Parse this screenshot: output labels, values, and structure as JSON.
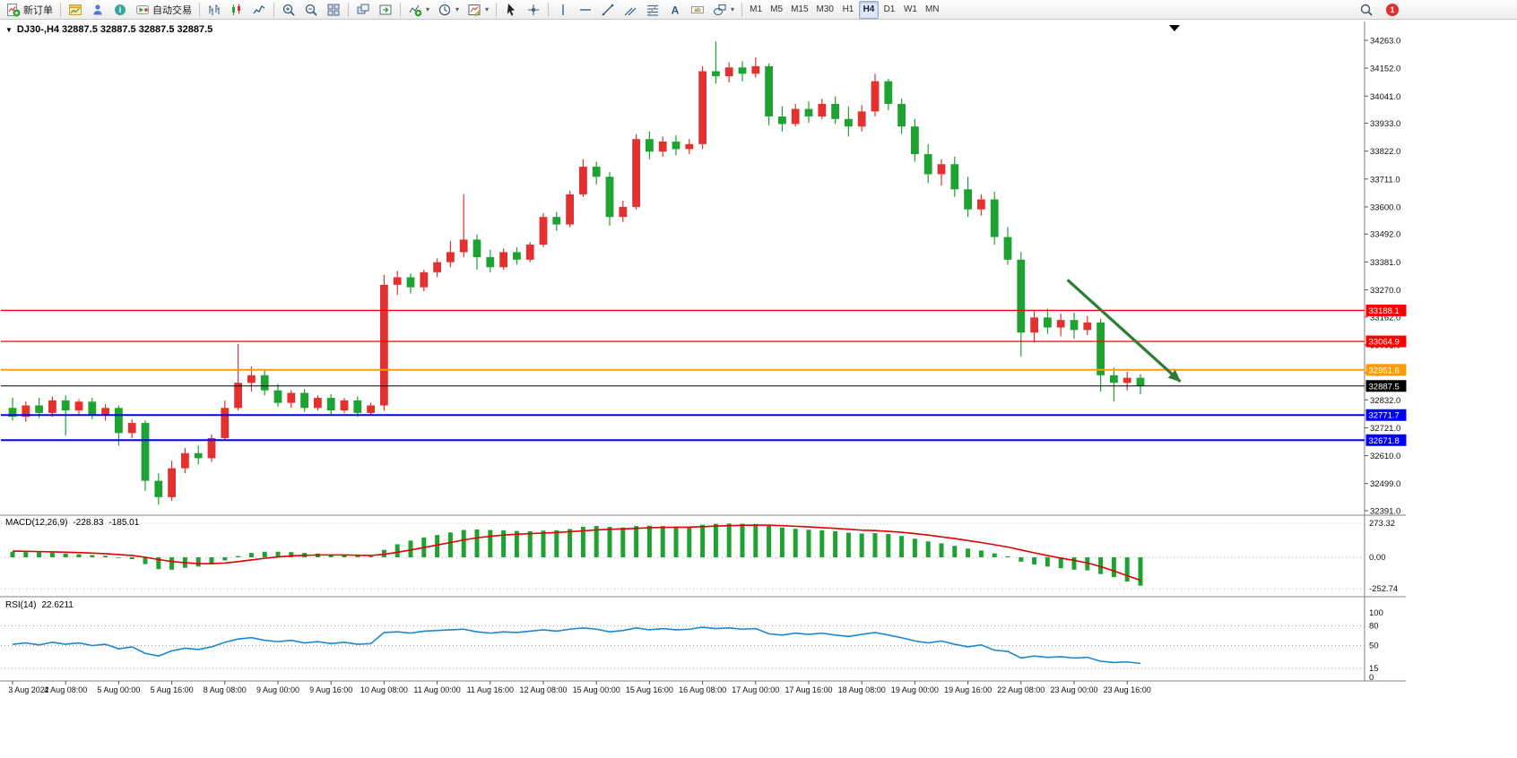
{
  "toolbar": {
    "groups": [
      {
        "items": [
          {
            "name": "new-order-button",
            "icon": "new-order",
            "label": "新订单"
          }
        ]
      },
      {
        "items": [
          {
            "name": "new-chart-button",
            "icon": "new-chart"
          },
          {
            "name": "profiles-button",
            "icon": "profiles"
          },
          {
            "name": "data-window-button",
            "icon": "data-window"
          },
          {
            "name": "auto-trading-button",
            "icon": "autotrade",
            "label": "自动交易"
          }
        ]
      },
      {
        "items": [
          {
            "name": "bar-chart-button",
            "icon": "bars"
          },
          {
            "name": "candlestick-button",
            "icon": "candles"
          },
          {
            "name": "line-chart-button",
            "icon": "line"
          }
        ]
      },
      {
        "items": [
          {
            "name": "zoom-in-button",
            "icon": "zoom-in"
          },
          {
            "name": "zoom-out-button",
            "icon": "zoom-out"
          },
          {
            "name": "tile-windows-button",
            "icon": "tile"
          }
        ]
      },
      {
        "items": [
          {
            "name": "cascade-windows-button",
            "icon": "arrange"
          },
          {
            "name": "chart-shift-button",
            "icon": "shift"
          }
        ]
      },
      {
        "items": [
          {
            "name": "indicators-button",
            "icon": "indicators",
            "dropdown": true
          },
          {
            "name": "periods-button",
            "icon": "clock",
            "dropdown": true
          },
          {
            "name": "templates-button",
            "icon": "template",
            "dropdown": true
          }
        ]
      },
      {
        "items": [
          {
            "name": "cursor-button",
            "icon": "cursor"
          },
          {
            "name": "crosshair-button",
            "icon": "crosshair"
          }
        ]
      },
      {
        "items": [
          {
            "name": "vertical-line-button",
            "icon": "vline"
          },
          {
            "name": "horizontal-line-button",
            "icon": "hline"
          },
          {
            "name": "trendline-button",
            "icon": "trendline"
          },
          {
            "name": "channel-button",
            "icon": "channel"
          },
          {
            "name": "fibonacci-button",
            "icon": "fibo"
          },
          {
            "name": "text-button",
            "icon": "text"
          },
          {
            "name": "text-label-button",
            "icon": "textlabel"
          },
          {
            "name": "shapes-button",
            "icon": "shapes",
            "dropdown": true
          }
        ]
      },
      {
        "items": [
          {
            "name": "tf-m1-button",
            "label": "M1",
            "tf": true
          },
          {
            "name": "tf-m5-button",
            "label": "M5",
            "tf": true
          },
          {
            "name": "tf-m15-button",
            "label": "M15",
            "tf": true
          },
          {
            "name": "tf-m30-button",
            "label": "M30",
            "tf": true
          },
          {
            "name": "tf-h1-button",
            "label": "H1",
            "tf": true
          },
          {
            "name": "tf-h4-button",
            "label": "H4",
            "tf": true,
            "active": true
          },
          {
            "name": "tf-d1-button",
            "label": "D1",
            "tf": true
          },
          {
            "name": "tf-w1-button",
            "label": "W1",
            "tf": true
          },
          {
            "name": "tf-mn-button",
            "label": "MN",
            "tf": true
          }
        ]
      }
    ],
    "right": [
      {
        "name": "search-button",
        "icon": "search"
      },
      {
        "name": "notification-badge",
        "icon": "badge",
        "label": "1"
      }
    ]
  },
  "chart": {
    "title_text": "DJ30-,H4  32887.5 32887.5 32887.5 32887.5"
  },
  "chart_data": {
    "type": "candlestick",
    "symbol": "DJ30-",
    "timeframe": "H4",
    "current_price": 32887.5,
    "price_axis": {
      "min": 32391.0,
      "max": 34263.0,
      "tick_labels": [
        "34263.0",
        "34152.0",
        "34041.0",
        "33933.0",
        "33822.0",
        "33711.0",
        "33600.0",
        "33492.0",
        "33381.0",
        "33270.0",
        "33162.0",
        "33051.0",
        "32940.0",
        "32832.0",
        "32721.0",
        "32610.0",
        "32499.0",
        "32391.0"
      ]
    },
    "time_labels": [
      "3 Aug 2022",
      "4 Aug 08:00",
      "5 Aug 00:00",
      "5 Aug 16:00",
      "8 Aug 08:00",
      "9 Aug 00:00",
      "9 Aug 16:00",
      "10 Aug 08:00",
      "11 Aug 00:00",
      "11 Aug 16:00",
      "12 Aug 08:00",
      "15 Aug 00:00",
      "15 Aug 16:00",
      "16 Aug 08:00",
      "17 Aug 00:00",
      "17 Aug 16:00",
      "18 Aug 08:00",
      "19 Aug 00:00",
      "19 Aug 16:00",
      "22 Aug 08:00",
      "23 Aug 00:00",
      "23 Aug 16:00"
    ],
    "colors": {
      "bull": "#e53030",
      "bear": "#1ea332",
      "macd_hist": "#1ea332",
      "macd_signal": "#e00000",
      "rsi_line": "#1c86d1",
      "arrow": "#2e7d32",
      "line_red": "#ff0000",
      "line_orange": "#ff9d00",
      "line_blue": "#0000ff",
      "line_black": "#000000"
    },
    "hlines": [
      {
        "price": 33188.1,
        "label": "33188.1",
        "color": "#ff0000",
        "width": 1.3
      },
      {
        "price": 33064.9,
        "label": "33064.9",
        "color": "#ff0000",
        "width": 1.3
      },
      {
        "price": 32951.6,
        "label": "32951.6",
        "color": "#ff9d00",
        "width": 2
      },
      {
        "price": 32887.5,
        "label": "32887.5",
        "color": "#000000",
        "width": 1
      },
      {
        "price": 32771.7,
        "label": "32771.7",
        "color": "#0000ff",
        "width": 2
      },
      {
        "price": 32671.8,
        "label": "32671.8",
        "color": "#0000ff",
        "width": 2
      }
    ],
    "arrow": {
      "from_index": 79.5,
      "from_price": 33310,
      "to_index": 88,
      "to_price": 32905
    },
    "candles": [
      [
        32800,
        32840,
        32750,
        32765
      ],
      [
        32765,
        32825,
        32745,
        32810
      ],
      [
        32810,
        32840,
        32760,
        32780
      ],
      [
        32780,
        32845,
        32765,
        32830
      ],
      [
        32830,
        32850,
        32690,
        32790
      ],
      [
        32790,
        32835,
        32770,
        32825
      ],
      [
        32825,
        32840,
        32755,
        32770
      ],
      [
        32770,
        32815,
        32750,
        32800
      ],
      [
        32800,
        32810,
        32650,
        32700
      ],
      [
        32700,
        32755,
        32680,
        32740
      ],
      [
        32740,
        32750,
        32470,
        32510
      ],
      [
        32510,
        32540,
        32415,
        32445
      ],
      [
        32445,
        32590,
        32430,
        32560
      ],
      [
        32560,
        32640,
        32540,
        32620
      ],
      [
        32620,
        32650,
        32575,
        32600
      ],
      [
        32600,
        32695,
        32585,
        32680
      ],
      [
        32680,
        32830,
        32670,
        32800
      ],
      [
        32800,
        33055,
        32790,
        32900
      ],
      [
        32900,
        32965,
        32865,
        32930
      ],
      [
        32930,
        32950,
        32850,
        32870
      ],
      [
        32870,
        32895,
        32805,
        32820
      ],
      [
        32820,
        32870,
        32800,
        32860
      ],
      [
        32860,
        32875,
        32785,
        32800
      ],
      [
        32800,
        32850,
        32790,
        32840
      ],
      [
        32840,
        32855,
        32775,
        32790
      ],
      [
        32790,
        32840,
        32780,
        32830
      ],
      [
        32830,
        32845,
        32765,
        32780
      ],
      [
        32780,
        32820,
        32770,
        32810
      ],
      [
        32810,
        33330,
        32790,
        33290
      ],
      [
        33290,
        33345,
        33250,
        33320
      ],
      [
        33320,
        33335,
        33255,
        33280
      ],
      [
        33280,
        33350,
        33265,
        33340
      ],
      [
        33340,
        33395,
        33320,
        33380
      ],
      [
        33380,
        33465,
        33360,
        33420
      ],
      [
        33420,
        33650,
        33400,
        33470
      ],
      [
        33470,
        33490,
        33350,
        33400
      ],
      [
        33400,
        33430,
        33340,
        33360
      ],
      [
        33360,
        33435,
        33350,
        33420
      ],
      [
        33420,
        33440,
        33370,
        33390
      ],
      [
        33390,
        33460,
        33380,
        33450
      ],
      [
        33450,
        33575,
        33440,
        33560
      ],
      [
        33560,
        33580,
        33505,
        33530
      ],
      [
        33530,
        33665,
        33520,
        33650
      ],
      [
        33650,
        33790,
        33640,
        33760
      ],
      [
        33760,
        33780,
        33690,
        33720
      ],
      [
        33720,
        33740,
        33525,
        33560
      ],
      [
        33560,
        33625,
        33540,
        33600
      ],
      [
        33600,
        33890,
        33590,
        33870
      ],
      [
        33870,
        33900,
        33790,
        33820
      ],
      [
        33820,
        33880,
        33800,
        33860
      ],
      [
        33860,
        33885,
        33805,
        33830
      ],
      [
        33830,
        33870,
        33810,
        33850
      ],
      [
        33850,
        34160,
        33830,
        34140
      ],
      [
        34140,
        34258,
        34090,
        34120
      ],
      [
        34120,
        34175,
        34095,
        34155
      ],
      [
        34155,
        34180,
        34100,
        34130
      ],
      [
        34130,
        34195,
        34115,
        34160
      ],
      [
        34160,
        34170,
        33925,
        33960
      ],
      [
        33960,
        34000,
        33900,
        33930
      ],
      [
        33930,
        34010,
        33920,
        33990
      ],
      [
        33990,
        34020,
        33935,
        33960
      ],
      [
        33960,
        34030,
        33950,
        34010
      ],
      [
        34010,
        34040,
        33930,
        33950
      ],
      [
        33950,
        34000,
        33880,
        33920
      ],
      [
        33920,
        34005,
        33900,
        33980
      ],
      [
        33980,
        34130,
        33960,
        34100
      ],
      [
        34100,
        34110,
        33985,
        34010
      ],
      [
        34010,
        34030,
        33890,
        33920
      ],
      [
        33920,
        33950,
        33780,
        33810
      ],
      [
        33810,
        33850,
        33695,
        33730
      ],
      [
        33730,
        33790,
        33685,
        33770
      ],
      [
        33770,
        33800,
        33640,
        33670
      ],
      [
        33670,
        33720,
        33560,
        33590
      ],
      [
        33590,
        33650,
        33565,
        33630
      ],
      [
        33630,
        33660,
        33450,
        33480
      ],
      [
        33480,
        33520,
        33370,
        33390
      ],
      [
        33390,
        33420,
        33005,
        33100
      ],
      [
        33100,
        33185,
        33060,
        33160
      ],
      [
        33160,
        33195,
        33095,
        33120
      ],
      [
        33120,
        33175,
        33085,
        33150
      ],
      [
        33150,
        33180,
        33075,
        33110
      ],
      [
        33110,
        33165,
        33090,
        33140
      ],
      [
        33140,
        33155,
        32865,
        32930
      ],
      [
        32930,
        32960,
        32825,
        32900
      ],
      [
        32900,
        32945,
        32870,
        32920
      ],
      [
        32920,
        32935,
        32855,
        32887.5
      ]
    ],
    "macd": {
      "label": "MACD(12,26,9)",
      "value_main": "-228.83",
      "value_signal": "-185.01",
      "scale_labels": [
        "273.32",
        "0.00",
        "-252.74"
      ],
      "scale_values": [
        273.32,
        0,
        -252.74
      ],
      "main": [
        45,
        42,
        40,
        38,
        30,
        25,
        18,
        12,
        -5,
        -15,
        -55,
        -95,
        -100,
        -85,
        -75,
        -55,
        -25,
        10,
        35,
        45,
        45,
        42,
        35,
        30,
        22,
        18,
        10,
        8,
        60,
        105,
        135,
        160,
        180,
        200,
        220,
        225,
        220,
        218,
        212,
        210,
        215,
        218,
        228,
        245,
        252,
        245,
        240,
        252,
        255,
        252,
        248,
        245,
        262,
        270,
        272,
        270,
        268,
        255,
        240,
        230,
        222,
        218,
        210,
        198,
        192,
        195,
        188,
        172,
        150,
        128,
        112,
        92,
        70,
        55,
        32,
        8,
        -35,
        -58,
        -75,
        -88,
        -100,
        -105,
        -135,
        -160,
        -195,
        -228.83
      ],
      "signal": [
        50,
        48,
        46,
        44,
        41,
        38,
        34,
        29,
        22,
        15,
        1,
        -18,
        -34,
        -44,
        -50,
        -51,
        -46,
        -35,
        -21,
        -8,
        3,
        11,
        16,
        19,
        19,
        19,
        17,
        15,
        24,
        40,
        59,
        79,
        99,
        119,
        140,
        157,
        169,
        179,
        186,
        191,
        195,
        200,
        206,
        213,
        221,
        226,
        229,
        233,
        238,
        241,
        242,
        243,
        247,
        251,
        255,
        258,
        260,
        259,
        255,
        250,
        245,
        239,
        233,
        226,
        219,
        215,
        209,
        202,
        191,
        179,
        165,
        151,
        135,
        119,
        101,
        83,
        59,
        36,
        14,
        -7,
        -25,
        -45,
        -75,
        -110,
        -148,
        -185.01
      ]
    },
    "rsi": {
      "label": "RSI(14)",
      "value": "22.6211",
      "levels": [
        100,
        80,
        50,
        15,
        0
      ],
      "dashed_levels": [
        80,
        50,
        15
      ],
      "values": [
        52,
        54,
        51,
        55,
        52,
        54,
        50,
        52,
        45,
        48,
        38,
        34,
        42,
        46,
        44,
        48,
        55,
        60,
        62,
        58,
        56,
        58,
        54,
        56,
        53,
        55,
        52,
        53,
        70,
        71,
        69,
        72,
        73,
        74,
        75,
        71,
        69,
        71,
        70,
        72,
        74,
        72,
        75,
        77,
        75,
        71,
        73,
        77,
        74,
        76,
        74,
        75,
        78,
        76,
        77,
        75,
        76,
        68,
        66,
        69,
        67,
        69,
        66,
        64,
        67,
        70,
        66,
        62,
        57,
        54,
        57,
        52,
        48,
        51,
        43,
        41,
        31,
        34,
        32,
        33,
        31,
        32,
        26,
        24,
        25,
        22.62
      ]
    }
  }
}
